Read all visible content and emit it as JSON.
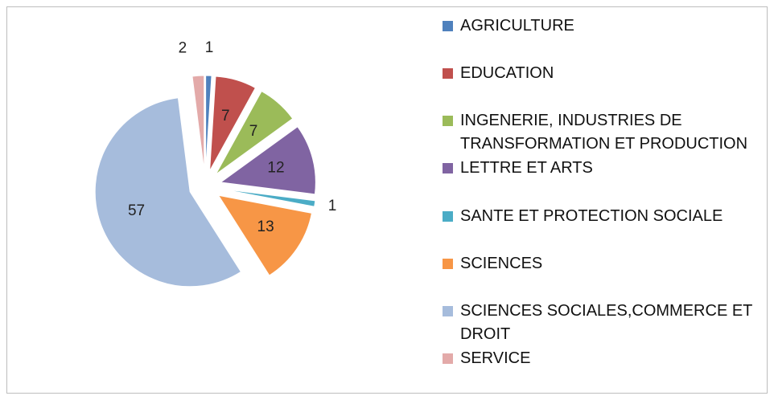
{
  "chart_data": {
    "type": "pie",
    "categories": [
      "AGRICULTURE",
      "EDUCATION",
      "INGENERIE, INDUSTRIES DE TRANSFORMATION ET PRODUCTION",
      "LETTRE ET ARTS",
      "SANTE ET PROTECTION SOCIALE",
      "SCIENCES",
      "SCIENCES SOCIALES,COMMERCE ET DROIT",
      "SERVICE"
    ],
    "values": [
      1,
      7,
      7,
      12,
      1,
      13,
      57,
      2
    ],
    "colors": [
      "#4f81bd",
      "#c0504d",
      "#9bbb59",
      "#8064a2",
      "#4bacc6",
      "#f79646",
      "#a6bcdc",
      "#e3aaa9"
    ],
    "legend": "right"
  }
}
